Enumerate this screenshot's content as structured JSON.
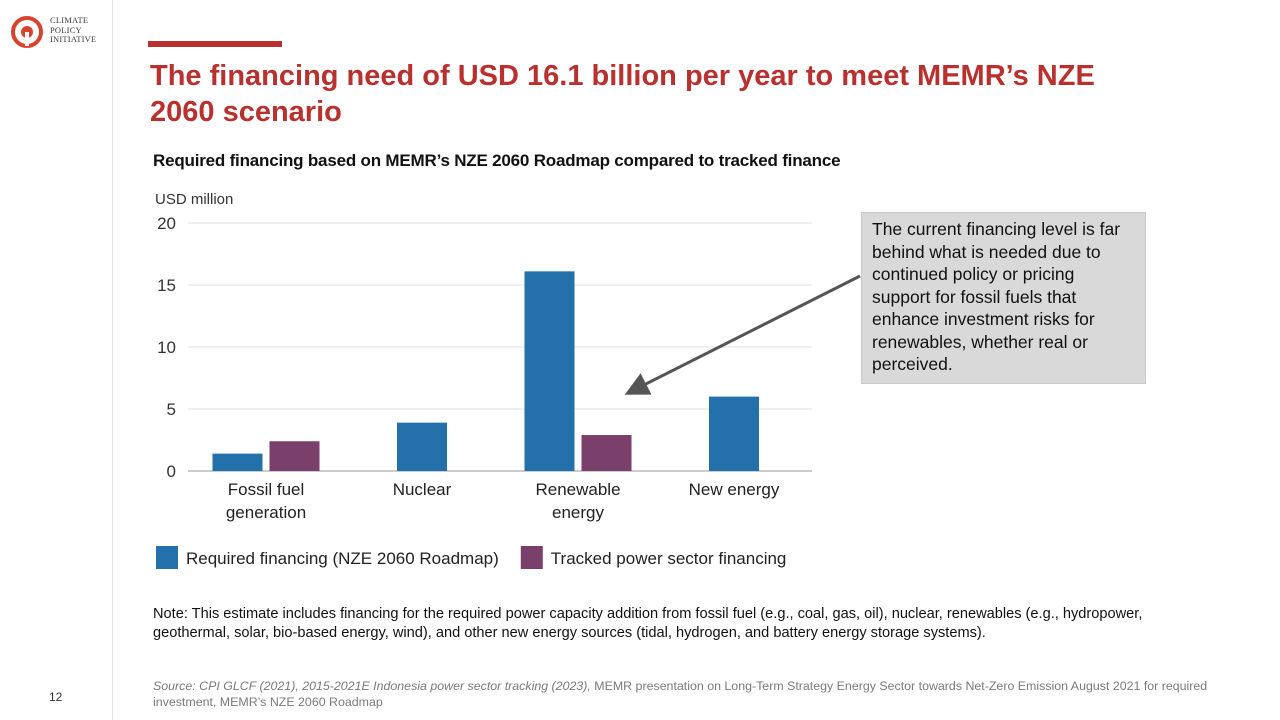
{
  "brand": {
    "logo_text": "CLIMATE POLICY INITIATIVE",
    "accent_color": "#b8312f"
  },
  "page_number": "12",
  "title": "The financing need of USD 16.1 billion per year to meet MEMR’s NZE 2060 scenario",
  "subtitle": "Required financing based on MEMR’s NZE 2060 Roadmap compared to tracked finance",
  "callout_text": "The current financing level is far behind what is needed due to continued policy or pricing support for fossil fuels that enhance investment risks for renewables, whether real or perceived.",
  "note": "Note: This estimate includes financing for the required power capacity addition from fossil fuel (e.g., coal, gas, oil), nuclear, renewables (e.g., hydropower, geothermal, solar, bio-based energy, wind), and other new energy sources (tidal, hydrogen, and battery energy storage systems).",
  "source": {
    "italic_part": "Source: CPI GLCF (2021), 2015-2021E Indonesia power sector tracking (2023),",
    "plain_part": " MEMR presentation on Long-Term Strategy Energy Sector towards Net-Zero Emission August 2021 for required investment, MEMR’s NZE 2060 Roadmap"
  },
  "chart_data": {
    "type": "bar",
    "ylabel": "USD million",
    "ylim": [
      0,
      20
    ],
    "yticks": [
      0,
      5,
      10,
      15,
      20
    ],
    "grid": true,
    "legend_position": "bottom",
    "categories": [
      "Fossil fuel generation",
      "Nuclear",
      "Renewable energy",
      "New energy"
    ],
    "category_label_lines": [
      [
        "Fossil fuel",
        "generation"
      ],
      [
        "Nuclear"
      ],
      [
        "Renewable",
        "energy"
      ],
      [
        "New energy"
      ]
    ],
    "series": [
      {
        "name": "Required financing (NZE 2060 Roadmap)",
        "color": "#2470aa",
        "values": [
          1.4,
          3.9,
          16.1,
          6.0
        ]
      },
      {
        "name": "Tracked power sector financing",
        "color": "#7b3f6b",
        "values": [
          2.4,
          null,
          2.9,
          null
        ]
      }
    ]
  }
}
